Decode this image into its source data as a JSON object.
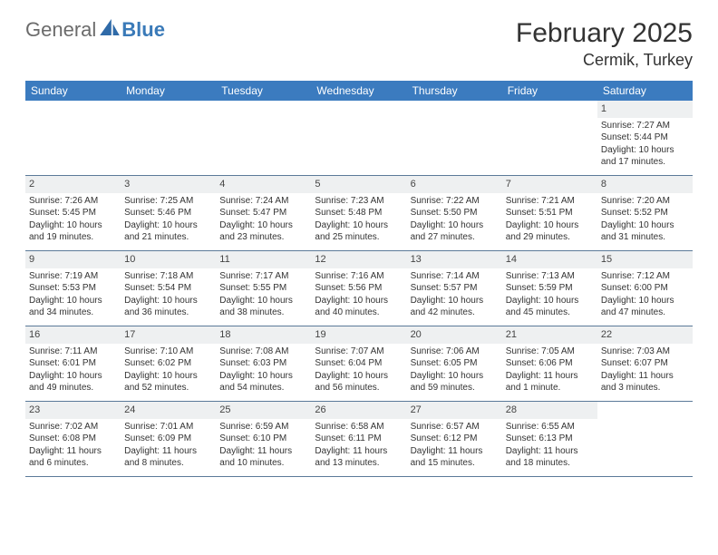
{
  "brand": {
    "part1": "General",
    "part2": "Blue",
    "logo_color": "#2f6aa8"
  },
  "title": "February 2025",
  "location": "Cermik, Turkey",
  "colors": {
    "header_bg": "#3b7bbf",
    "daynum_bg": "#eef0f1",
    "week_border": "#5b7a99",
    "text": "#333333"
  },
  "day_labels": [
    "Sunday",
    "Monday",
    "Tuesday",
    "Wednesday",
    "Thursday",
    "Friday",
    "Saturday"
  ],
  "weeks": [
    [
      null,
      null,
      null,
      null,
      null,
      null,
      {
        "n": "1",
        "sr": "7:27 AM",
        "ss": "5:44 PM",
        "dl": "10 hours and 17 minutes."
      }
    ],
    [
      {
        "n": "2",
        "sr": "7:26 AM",
        "ss": "5:45 PM",
        "dl": "10 hours and 19 minutes."
      },
      {
        "n": "3",
        "sr": "7:25 AM",
        "ss": "5:46 PM",
        "dl": "10 hours and 21 minutes."
      },
      {
        "n": "4",
        "sr": "7:24 AM",
        "ss": "5:47 PM",
        "dl": "10 hours and 23 minutes."
      },
      {
        "n": "5",
        "sr": "7:23 AM",
        "ss": "5:48 PM",
        "dl": "10 hours and 25 minutes."
      },
      {
        "n": "6",
        "sr": "7:22 AM",
        "ss": "5:50 PM",
        "dl": "10 hours and 27 minutes."
      },
      {
        "n": "7",
        "sr": "7:21 AM",
        "ss": "5:51 PM",
        "dl": "10 hours and 29 minutes."
      },
      {
        "n": "8",
        "sr": "7:20 AM",
        "ss": "5:52 PM",
        "dl": "10 hours and 31 minutes."
      }
    ],
    [
      {
        "n": "9",
        "sr": "7:19 AM",
        "ss": "5:53 PM",
        "dl": "10 hours and 34 minutes."
      },
      {
        "n": "10",
        "sr": "7:18 AM",
        "ss": "5:54 PM",
        "dl": "10 hours and 36 minutes."
      },
      {
        "n": "11",
        "sr": "7:17 AM",
        "ss": "5:55 PM",
        "dl": "10 hours and 38 minutes."
      },
      {
        "n": "12",
        "sr": "7:16 AM",
        "ss": "5:56 PM",
        "dl": "10 hours and 40 minutes."
      },
      {
        "n": "13",
        "sr": "7:14 AM",
        "ss": "5:57 PM",
        "dl": "10 hours and 42 minutes."
      },
      {
        "n": "14",
        "sr": "7:13 AM",
        "ss": "5:59 PM",
        "dl": "10 hours and 45 minutes."
      },
      {
        "n": "15",
        "sr": "7:12 AM",
        "ss": "6:00 PM",
        "dl": "10 hours and 47 minutes."
      }
    ],
    [
      {
        "n": "16",
        "sr": "7:11 AM",
        "ss": "6:01 PM",
        "dl": "10 hours and 49 minutes."
      },
      {
        "n": "17",
        "sr": "7:10 AM",
        "ss": "6:02 PM",
        "dl": "10 hours and 52 minutes."
      },
      {
        "n": "18",
        "sr": "7:08 AM",
        "ss": "6:03 PM",
        "dl": "10 hours and 54 minutes."
      },
      {
        "n": "19",
        "sr": "7:07 AM",
        "ss": "6:04 PM",
        "dl": "10 hours and 56 minutes."
      },
      {
        "n": "20",
        "sr": "7:06 AM",
        "ss": "6:05 PM",
        "dl": "10 hours and 59 minutes."
      },
      {
        "n": "21",
        "sr": "7:05 AM",
        "ss": "6:06 PM",
        "dl": "11 hours and 1 minute."
      },
      {
        "n": "22",
        "sr": "7:03 AM",
        "ss": "6:07 PM",
        "dl": "11 hours and 3 minutes."
      }
    ],
    [
      {
        "n": "23",
        "sr": "7:02 AM",
        "ss": "6:08 PM",
        "dl": "11 hours and 6 minutes."
      },
      {
        "n": "24",
        "sr": "7:01 AM",
        "ss": "6:09 PM",
        "dl": "11 hours and 8 minutes."
      },
      {
        "n": "25",
        "sr": "6:59 AM",
        "ss": "6:10 PM",
        "dl": "11 hours and 10 minutes."
      },
      {
        "n": "26",
        "sr": "6:58 AM",
        "ss": "6:11 PM",
        "dl": "11 hours and 13 minutes."
      },
      {
        "n": "27",
        "sr": "6:57 AM",
        "ss": "6:12 PM",
        "dl": "11 hours and 15 minutes."
      },
      {
        "n": "28",
        "sr": "6:55 AM",
        "ss": "6:13 PM",
        "dl": "11 hours and 18 minutes."
      },
      null
    ]
  ],
  "labels": {
    "sunrise": "Sunrise:",
    "sunset": "Sunset:",
    "daylight": "Daylight:"
  }
}
